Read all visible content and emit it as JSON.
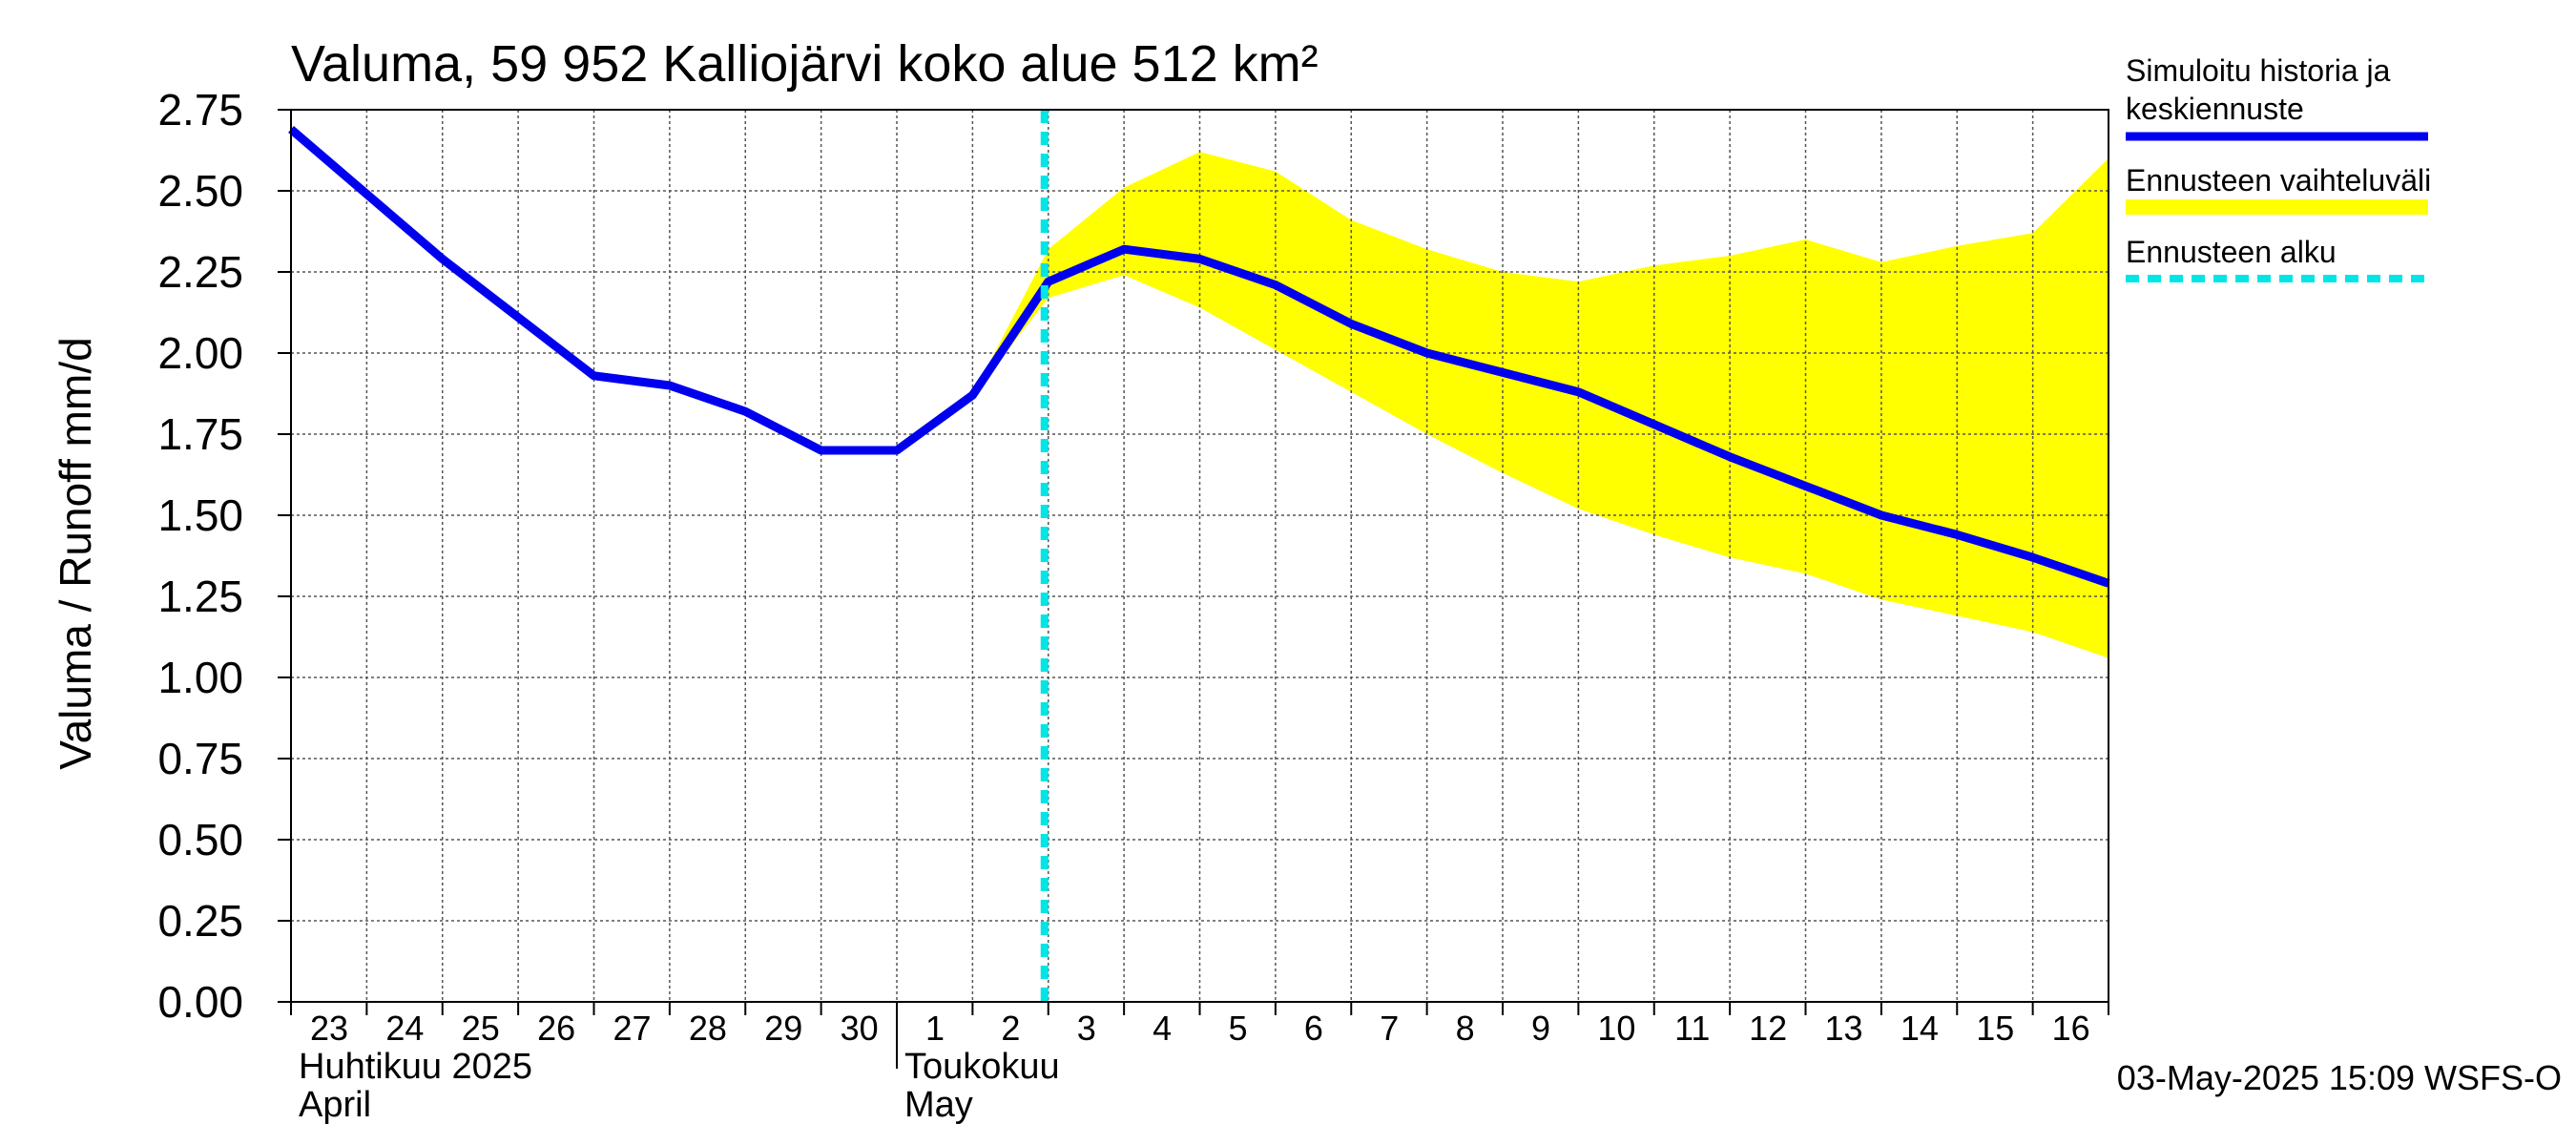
{
  "chart_data": {
    "type": "line",
    "title": "Valuma, 59 952 Kalliojärvi koko alue 512 km²",
    "ylabel": "Valuma / Runoff     mm/d",
    "ylim": [
      0,
      2.75
    ],
    "yticks": [
      "0.00",
      "0.25",
      "0.50",
      "0.75",
      "1.00",
      "1.25",
      "1.50",
      "1.75",
      "2.00",
      "2.25",
      "2.50",
      "2.75"
    ],
    "x_day_labels": [
      "23",
      "24",
      "25",
      "26",
      "27",
      "28",
      "29",
      "30",
      "1",
      "2",
      "3",
      "4",
      "5",
      "6",
      "7",
      "8",
      "9",
      "10",
      "11",
      "12",
      "13",
      "14",
      "15",
      "16"
    ],
    "x_start": "2025-04-23",
    "x_end": "2025-05-17",
    "month_labels": [
      {
        "line1": "Huhtikuu  2025",
        "line2": "April",
        "start": "2025-04-23"
      },
      {
        "line1": "Toukokuu",
        "line2": "May",
        "start": "2025-05-01"
      }
    ],
    "grid": true,
    "legend_position": "right",
    "series": [
      {
        "name": "Simuloitu historia ja keskiennuste",
        "color": "#0000ee",
        "points": [
          [
            "2025-04-23",
            2.69
          ],
          [
            "2025-04-24",
            2.49
          ],
          [
            "2025-04-25",
            2.29
          ],
          [
            "2025-04-26",
            2.11
          ],
          [
            "2025-04-27",
            1.93
          ],
          [
            "2025-04-28",
            1.9
          ],
          [
            "2025-04-29",
            1.82
          ],
          [
            "2025-04-30",
            1.7
          ],
          [
            "2025-05-01",
            1.7
          ],
          [
            "2025-05-02",
            1.87
          ],
          [
            "2025-05-03",
            2.22
          ],
          [
            "2025-05-04",
            2.32
          ],
          [
            "2025-05-05",
            2.29
          ],
          [
            "2025-05-06",
            2.21
          ],
          [
            "2025-05-07",
            2.09
          ],
          [
            "2025-05-08",
            2.0
          ],
          [
            "2025-05-09",
            1.94
          ],
          [
            "2025-05-10",
            1.88
          ],
          [
            "2025-05-11",
            1.78
          ],
          [
            "2025-05-12",
            1.68
          ],
          [
            "2025-05-13",
            1.59
          ],
          [
            "2025-05-14",
            1.5
          ],
          [
            "2025-05-15",
            1.44
          ],
          [
            "2025-05-16",
            1.37
          ],
          [
            "2025-05-17",
            1.29
          ]
        ]
      },
      {
        "name": "Ennusteen vaihteluväli",
        "color": "#ffff00",
        "type": "area",
        "x": [
          "2025-05-02",
          "2025-05-03",
          "2025-05-04",
          "2025-05-05",
          "2025-05-06",
          "2025-05-07",
          "2025-05-08",
          "2025-05-09",
          "2025-05-10",
          "2025-05-11",
          "2025-05-12",
          "2025-05-13",
          "2025-05-14",
          "2025-05-15",
          "2025-05-16",
          "2025-05-17"
        ],
        "upper": [
          1.87,
          2.32,
          2.51,
          2.62,
          2.56,
          2.41,
          2.32,
          2.25,
          2.22,
          2.27,
          2.3,
          2.35,
          2.28,
          2.33,
          2.37,
          2.6
        ],
        "lower": [
          1.87,
          2.17,
          2.24,
          2.14,
          2.01,
          1.88,
          1.75,
          1.63,
          1.52,
          1.44,
          1.37,
          1.32,
          1.24,
          1.19,
          1.14,
          1.06
        ]
      }
    ],
    "forecast_start": {
      "name": "Ennusteen alku",
      "x": "2025-05-03",
      "color": "#00e5e5"
    },
    "legend": [
      {
        "line1": "Simuloitu historia ja",
        "line2": "keskiennuste",
        "color": "#0000ee",
        "style": "solid"
      },
      {
        "line1": "Ennusteen vaihteluväli",
        "line2": "",
        "color": "#ffff00",
        "style": "band"
      },
      {
        "line1": "Ennusteen alku",
        "line2": "",
        "color": "#00e5e5",
        "style": "dashed"
      }
    ],
    "timestamp": "03-May-2025 15:09 WSFS-O"
  }
}
